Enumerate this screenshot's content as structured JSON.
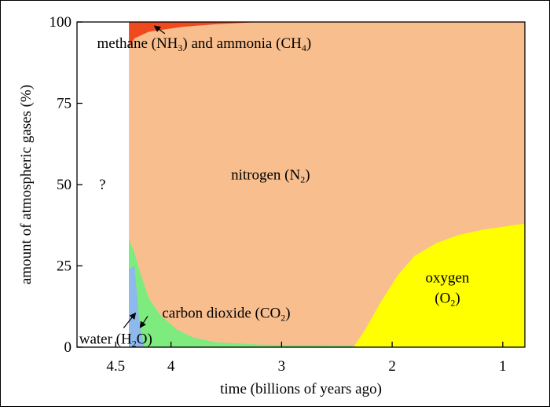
{
  "chart_data": {
    "type": "area",
    "xlabel": "time (billions of years ago)",
    "ylabel": "amount of atmospheric gases (%)",
    "xlim": [
      4.85,
      0.8
    ],
    "ylim": [
      0,
      100
    ],
    "xticks": [
      4.5,
      4,
      3,
      2,
      1
    ],
    "xtick_labels": [
      "4.5",
      "4",
      "3",
      "2",
      "1"
    ],
    "yticks": [
      0,
      25,
      50,
      75,
      100
    ],
    "ytick_labels": [
      "0",
      "25",
      "50",
      "75",
      "100"
    ],
    "unknown_label": "?",
    "unknown_at": {
      "x": 4.62,
      "y": 50
    },
    "grid": false,
    "legend": "none",
    "series": [
      {
        "name": "nitrogen (N2)",
        "color": "#F9BE8E",
        "points": [
          [
            4.38,
            0
          ],
          [
            4.38,
            92
          ],
          [
            4.3,
            99
          ],
          [
            4.0,
            100
          ],
          [
            0.8,
            100
          ],
          [
            0.8,
            0
          ]
        ]
      },
      {
        "name": "methane and ammonia",
        "color": "#EE4A1E",
        "points": [
          [
            4.38,
            100
          ],
          [
            4.38,
            92
          ],
          [
            4.33,
            95
          ],
          [
            4.2,
            97
          ],
          [
            3.9,
            98.5
          ],
          [
            3.6,
            99.3
          ],
          [
            3.3,
            99.8
          ],
          [
            3.2,
            100
          ]
        ]
      },
      {
        "name": "carbon dioxide (CO2)",
        "color": "#7EEB7E",
        "points": [
          [
            4.38,
            0
          ],
          [
            4.38,
            33
          ],
          [
            4.34,
            30
          ],
          [
            4.27,
            22
          ],
          [
            4.2,
            15
          ],
          [
            4.1,
            10
          ],
          [
            3.95,
            5.5
          ],
          [
            3.8,
            3
          ],
          [
            3.6,
            1.5
          ],
          [
            3.2,
            0.8
          ],
          [
            2.3,
            0.5
          ],
          [
            2.3,
            0
          ]
        ]
      },
      {
        "name": "water (H2O)",
        "color": "#8DB9EC",
        "points": [
          [
            4.38,
            0
          ],
          [
            4.38,
            24
          ],
          [
            4.33,
            25
          ],
          [
            4.31,
            17
          ],
          [
            4.29,
            9
          ],
          [
            4.26,
            3
          ],
          [
            4.24,
            0
          ]
        ]
      },
      {
        "name": "oxygen (O2)",
        "color": "#FFFF00",
        "points": [
          [
            2.35,
            0
          ],
          [
            2.25,
            5
          ],
          [
            2.1,
            14
          ],
          [
            1.95,
            22
          ],
          [
            1.8,
            28
          ],
          [
            1.6,
            32
          ],
          [
            1.4,
            34.5
          ],
          [
            1.2,
            36
          ],
          [
            1.0,
            37
          ],
          [
            0.8,
            38
          ],
          [
            0.8,
            0
          ]
        ]
      }
    ],
    "annotations": [
      {
        "id": "methane",
        "text": "methane (NH",
        "sub1": "3",
        "mid": ") and ammonia (CH",
        "sub2": "4",
        "end": ")",
        "x": 3.7,
        "y": 93.5,
        "arrow_to": [
          4.15,
          98.8
        ]
      },
      {
        "id": "nitrogen",
        "text": "nitrogen (N",
        "sub1": "2",
        "end": ")",
        "x": 3.1,
        "y": 53
      },
      {
        "id": "carbon",
        "text": "carbon dioxide (CO",
        "sub1": "2",
        "end": ")",
        "x": 3.5,
        "y": 10.5,
        "arrow_to": [
          4.28,
          6
        ]
      },
      {
        "id": "water",
        "text": "water (H",
        "sub1": "2",
        "mid": "O)",
        "x": 4.5,
        "y": 2.5,
        "arrow_to": [
          4.32,
          10.5
        ]
      },
      {
        "id": "oxygen",
        "line1": "oxygen",
        "line2_text": "(O",
        "line2_sub": "2",
        "line2_end": ")",
        "x": 1.5,
        "y": 17
      }
    ]
  }
}
